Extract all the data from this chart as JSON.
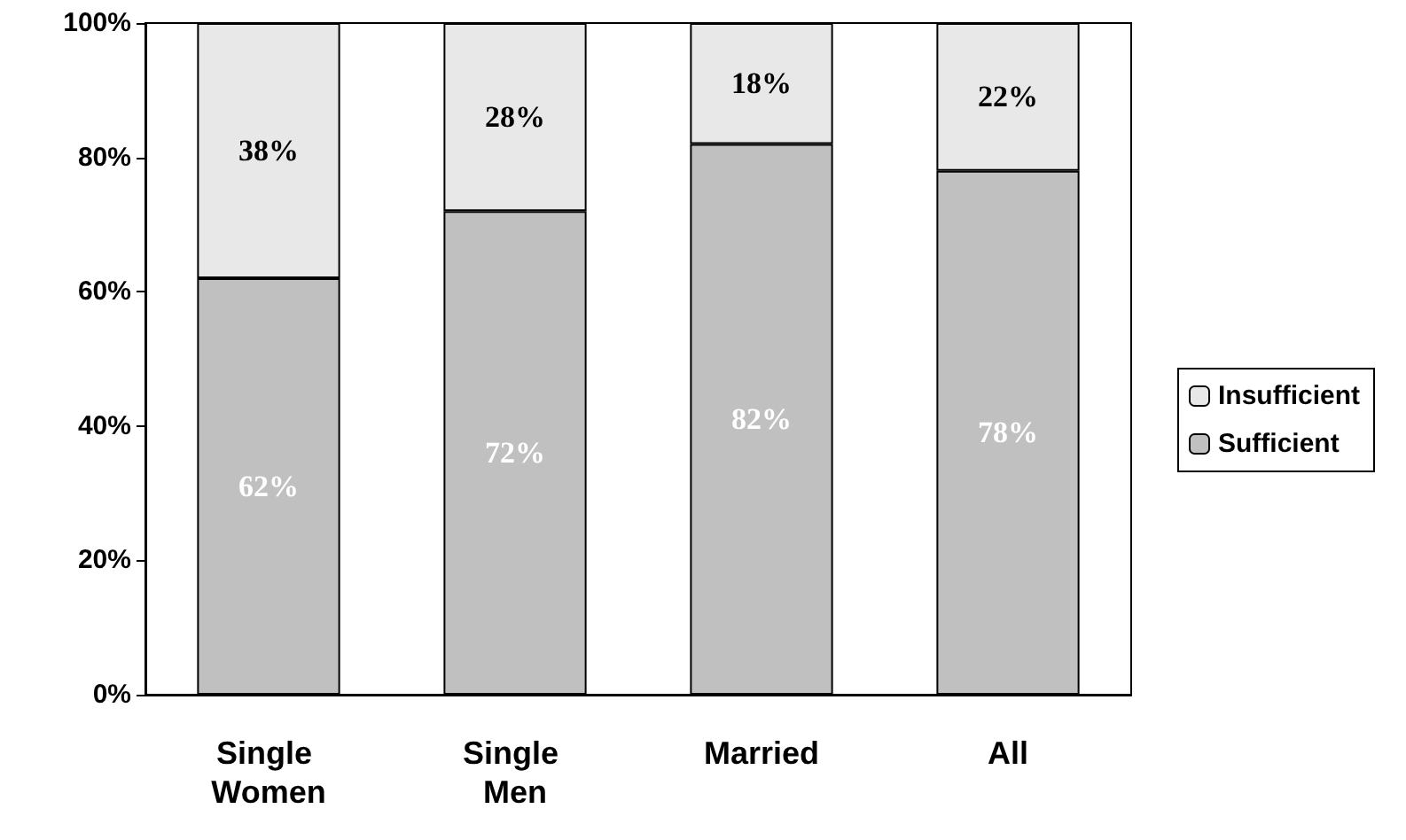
{
  "chart_data": {
    "type": "bar",
    "stacked": true,
    "categories": [
      "Single Women",
      "Single Men",
      "Married",
      "All"
    ],
    "series": [
      {
        "name": "Sufficient",
        "color": "#c0c0c0",
        "values": [
          62,
          72,
          82,
          78
        ],
        "value_labels": [
          "62%",
          "72%",
          "82%",
          "78%"
        ]
      },
      {
        "name": "Insufficient",
        "color": "#e8e8e8",
        "values": [
          38,
          28,
          18,
          22
        ],
        "value_labels": [
          "38%",
          "28%",
          "18%",
          "22%"
        ]
      }
    ],
    "ylim": [
      0,
      100
    ],
    "yticks": [
      {
        "value": 0,
        "label": "0%"
      },
      {
        "value": 20,
        "label": "20%"
      },
      {
        "value": 40,
        "label": "40%"
      },
      {
        "value": 60,
        "label": "60%"
      },
      {
        "value": 80,
        "label": "80%"
      },
      {
        "value": 100,
        "label": "100%"
      }
    ],
    "grid": false,
    "legend": "right"
  }
}
